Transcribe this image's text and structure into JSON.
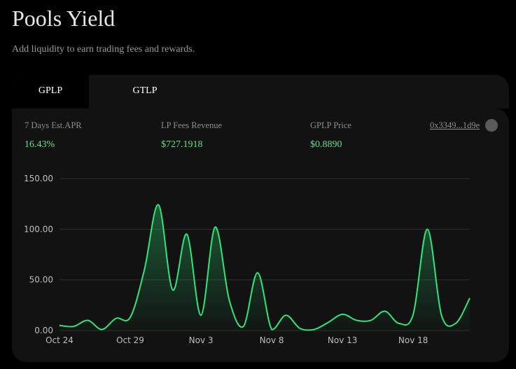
{
  "header": {
    "title": "Pools Yield",
    "subtitle": "Add liquidity to earn trading fees and rewards."
  },
  "tabs": [
    {
      "label": "GPLP",
      "active": true
    },
    {
      "label": "GTLP",
      "active": false
    }
  ],
  "stats": {
    "apr_label": "7 Days Est.APR",
    "apr_value": "16.43%",
    "fees_label": "LP Fees Revenue",
    "fees_value": "$727.1918",
    "price_label": "GPLP Price",
    "price_value": "$0.8890",
    "address": "0x3349...1d9e",
    "token_icon": "token-circle-icon"
  },
  "colors": {
    "accent_green": "#2ee67a",
    "value_green": "#5ee08f",
    "card_bg": "#121212",
    "page_bg": "#000000"
  },
  "chart_data": {
    "type": "area",
    "x_tick_labels": [
      "Oct 24",
      "Oct 29",
      "Nov 3",
      "Nov 8",
      "Nov 13",
      "Nov 18"
    ],
    "y_tick_labels": [
      "0.00",
      "50.00",
      "100.00",
      "150.00"
    ],
    "ylim": [
      0,
      150
    ],
    "xlim": [
      0,
      29
    ],
    "grid": true,
    "series": [
      {
        "x": [
          0,
          1,
          2,
          3,
          4,
          5,
          6,
          7,
          8,
          9,
          10,
          11,
          12,
          13,
          14,
          15,
          16,
          17,
          18,
          19,
          20,
          21,
          22,
          23,
          24,
          25,
          26,
          27,
          28,
          29
        ],
        "values": [
          5,
          4,
          10,
          1,
          12,
          13,
          60,
          124,
          40,
          95,
          15,
          102,
          30,
          4,
          57,
          1,
          15,
          2,
          1,
          8,
          16,
          10,
          10,
          19,
          7,
          16,
          100,
          15,
          7,
          32
        ],
        "color": "#2ee67a"
      }
    ]
  }
}
